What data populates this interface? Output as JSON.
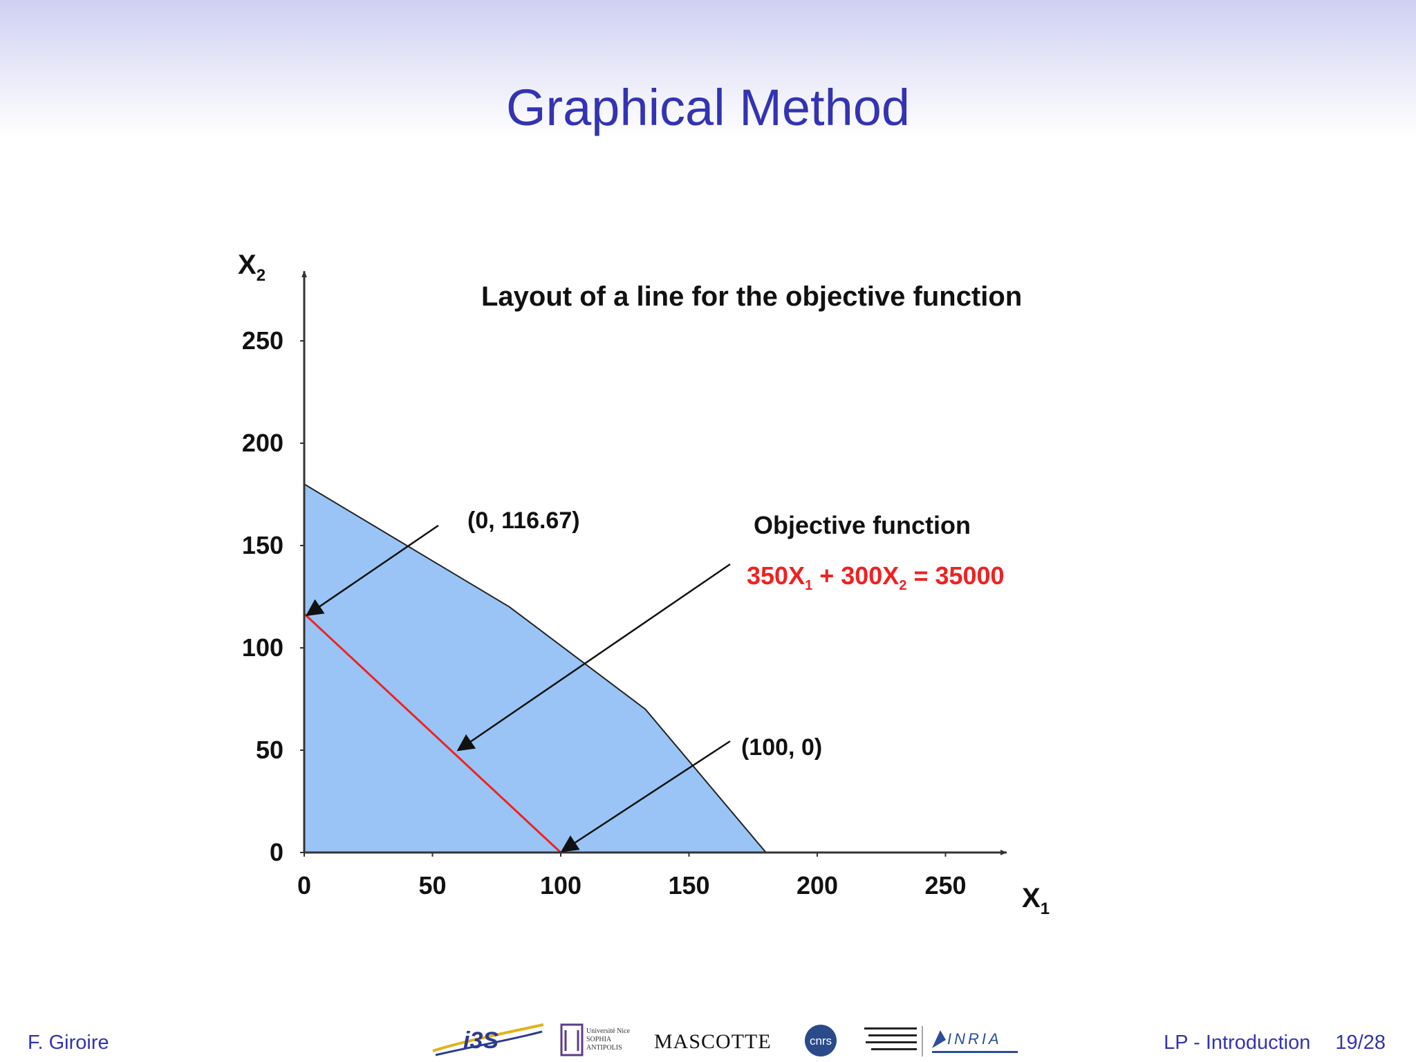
{
  "slide": {
    "title": "Graphical Method",
    "footer": {
      "author": "F. Giroire",
      "section": "LP - Introduction",
      "page": "19/28"
    },
    "logos": [
      {
        "text": "i3S",
        "icon": "i3s-logo"
      },
      {
        "text": "Université Nice SOPHIA ANTIPOLIS",
        "icon": "universite-nice-logo"
      },
      {
        "text": "MASCOTTE",
        "icon": "mascotte-logo"
      },
      {
        "text": "cnrs",
        "icon": "cnrs-logo"
      },
      {
        "text": "INRIA",
        "icon": "inria-logo"
      }
    ]
  },
  "chart_data": {
    "type": "area",
    "title": "Layout of a line for the objective function",
    "xlabel": "X1",
    "ylabel": "X2",
    "xlim": [
      0,
      290
    ],
    "ylim": [
      0,
      280
    ],
    "xticks": [
      0,
      50,
      100,
      150,
      200,
      250
    ],
    "yticks": [
      0,
      50,
      100,
      150,
      200,
      250
    ],
    "feasible_region": {
      "x": [
        0,
        0,
        80,
        133,
        180
      ],
      "y": [
        0,
        180,
        120,
        70,
        0
      ],
      "color": "#99c4f5"
    },
    "objective_line": {
      "points": [
        [
          0,
          116.67
        ],
        [
          100,
          0
        ]
      ],
      "color": "#ee2222"
    },
    "annotations": [
      {
        "text": "(0, 116.67)",
        "target": [
          0,
          116.67
        ]
      },
      {
        "text": "(100, 0)",
        "target": [
          100,
          0
        ]
      },
      {
        "text": "Objective function",
        "target": [
          60,
          50
        ]
      },
      {
        "text": "350X1 + 300X2 = 35000",
        "color": "#ee2222"
      }
    ]
  }
}
